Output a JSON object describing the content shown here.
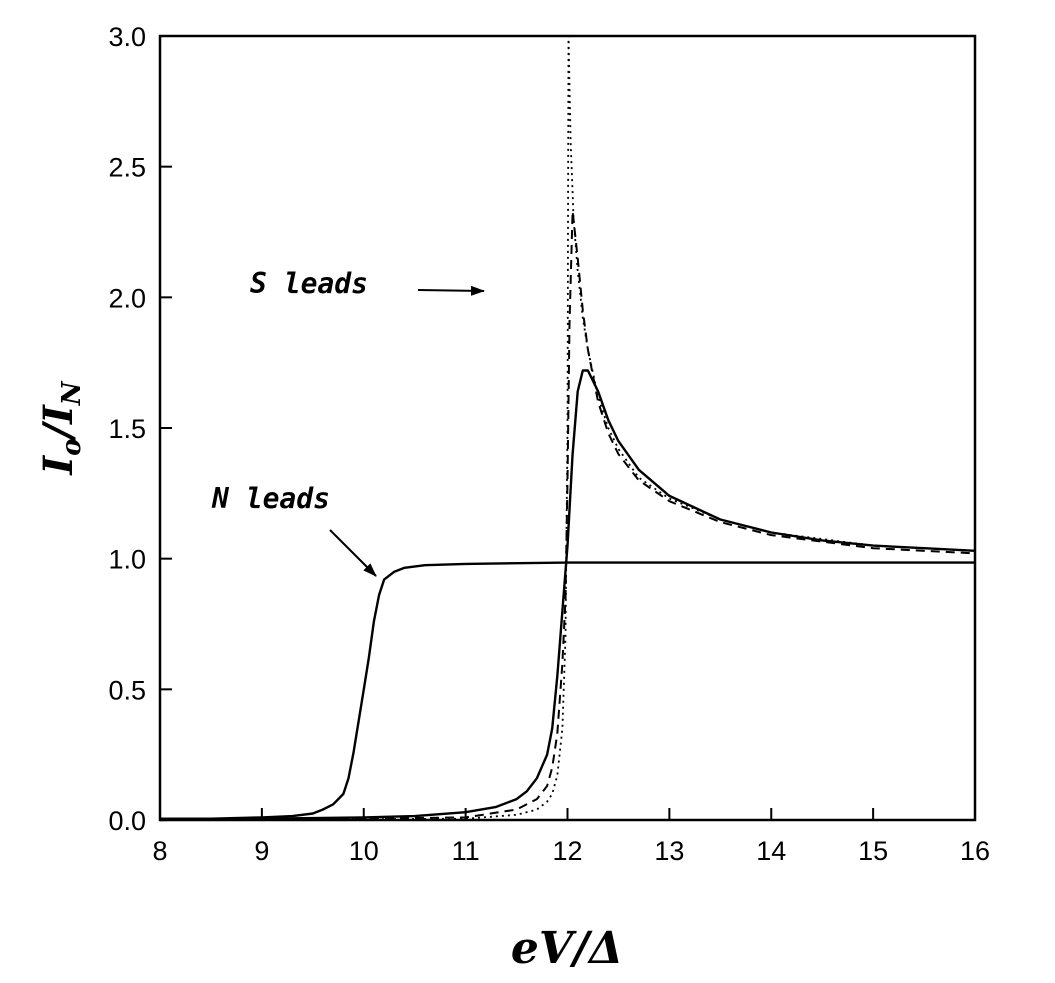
{
  "chart_data": {
    "type": "line",
    "xlabel": "eV/Δ",
    "ylabel": "I o / I N",
    "xlim": [
      8,
      16
    ],
    "ylim": [
      0,
      3.0
    ],
    "x_ticks": [
      "8",
      "9",
      "10",
      "11",
      "12",
      "13",
      "14",
      "15",
      "16"
    ],
    "y_ticks": [
      "0.0",
      "0.5",
      "1.0",
      "1.5",
      "2.0",
      "2.5",
      "3.0"
    ],
    "grid": false,
    "legend": "none",
    "annotations": [
      {
        "text": "S leads",
        "points_to": {
          "x": 12.0,
          "y": 2.07
        }
      },
      {
        "text": "N leads",
        "points_to": {
          "x": 10.15,
          "y": 0.96
        }
      }
    ],
    "series": [
      {
        "style": "solid",
        "x": [
          8.0,
          8.5,
          9.0,
          9.3,
          9.5,
          9.6,
          9.7,
          9.8,
          9.85,
          9.9,
          9.95,
          10.0,
          10.05,
          10.1,
          10.15,
          10.2,
          10.3,
          10.4,
          10.6,
          11.0,
          12.0,
          13.0,
          14.0,
          15.0,
          16.0
        ],
        "y": [
          0.0,
          0.005,
          0.01,
          0.015,
          0.025,
          0.04,
          0.06,
          0.1,
          0.16,
          0.26,
          0.38,
          0.5,
          0.62,
          0.76,
          0.86,
          0.92,
          0.95,
          0.965,
          0.975,
          0.98,
          0.985,
          0.985,
          0.985,
          0.985,
          0.985
        ]
      },
      {
        "style": "solid",
        "x": [
          8.0,
          9.0,
          10.0,
          10.5,
          11.0,
          11.3,
          11.5,
          11.6,
          11.7,
          11.8,
          11.85,
          11.9,
          11.95,
          12.0,
          12.05,
          12.1,
          12.15,
          12.2,
          12.3,
          12.4,
          12.5,
          12.7,
          13.0,
          13.5,
          14.0,
          14.5,
          15.0,
          15.5,
          16.0
        ],
        "y": [
          0.005,
          0.005,
          0.01,
          0.015,
          0.03,
          0.05,
          0.08,
          0.11,
          0.16,
          0.25,
          0.35,
          0.55,
          0.8,
          1.05,
          1.4,
          1.64,
          1.72,
          1.72,
          1.64,
          1.53,
          1.45,
          1.34,
          1.24,
          1.15,
          1.1,
          1.07,
          1.05,
          1.04,
          1.03
        ]
      },
      {
        "style": "dashed",
        "x": [
          8.0,
          10.0,
          11.0,
          11.5,
          11.7,
          11.8,
          11.85,
          11.9,
          11.95,
          11.98,
          12.0,
          12.02,
          12.05,
          12.1,
          12.15,
          12.2,
          12.3,
          12.4,
          12.5,
          12.7,
          13.0,
          13.5,
          14.0,
          15.0,
          16.0
        ],
        "y": [
          0.003,
          0.005,
          0.01,
          0.04,
          0.08,
          0.13,
          0.2,
          0.33,
          0.6,
          0.85,
          1.3,
          1.9,
          2.33,
          2.15,
          1.95,
          1.8,
          1.6,
          1.48,
          1.4,
          1.3,
          1.22,
          1.14,
          1.09,
          1.04,
          1.02
        ]
      },
      {
        "style": "dotted",
        "x": [
          8.0,
          10.0,
          11.0,
          11.5,
          11.7,
          11.8,
          11.85,
          11.9,
          11.95,
          11.98,
          12.0,
          12.01,
          12.03,
          12.06,
          12.1,
          12.15,
          12.2,
          12.3,
          12.4,
          12.5,
          12.7,
          13.0,
          13.5,
          14.0,
          15.0,
          16.0
        ],
        "y": [
          0.002,
          0.003,
          0.005,
          0.02,
          0.04,
          0.07,
          0.1,
          0.17,
          0.35,
          0.7,
          1.5,
          3.0,
          2.6,
          2.3,
          2.1,
          1.92,
          1.8,
          1.62,
          1.5,
          1.42,
          1.31,
          1.23,
          1.15,
          1.1,
          1.05,
          1.03
        ]
      }
    ]
  }
}
